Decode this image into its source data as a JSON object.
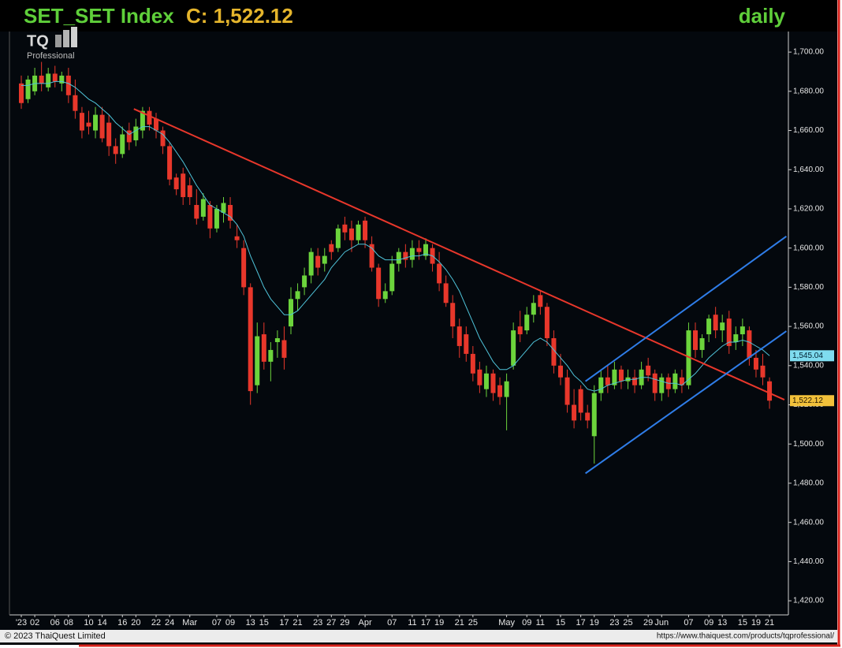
{
  "chart_data": {
    "type": "candlestick",
    "title": "SET_SET Index",
    "price_label": "C: 1,522.12",
    "period": "daily",
    "logo": "TQ",
    "logo_subtext": "Professional",
    "footer_left": "© 2023 ThaiQuest Limited",
    "footer_right": "https://www.thaiquest.com/products/tqprofessional/",
    "up_color": "#6cd43c",
    "down_color": "#e8372b",
    "ylim": [
      1412.8,
      1710.5
    ],
    "yticks": [
      {
        "value": 1420,
        "label": "1,420.00"
      },
      {
        "value": 1440,
        "label": "1,440.00"
      },
      {
        "value": 1460,
        "label": "1,460.00"
      },
      {
        "value": 1480,
        "label": "1,480.00"
      },
      {
        "value": 1500,
        "label": "1,500.00"
      },
      {
        "value": 1520,
        "label": "1,520.00"
      },
      {
        "value": 1540,
        "label": "1,540.00"
      },
      {
        "value": 1560,
        "label": "1,560.00"
      },
      {
        "value": 1580,
        "label": "1,580.00"
      },
      {
        "value": 1600,
        "label": "1,600.00"
      },
      {
        "value": 1620,
        "label": "1,620.00"
      },
      {
        "value": 1640,
        "label": "1,640.00"
      },
      {
        "value": 1660,
        "label": "1,660.00"
      },
      {
        "value": 1680,
        "label": "1,680.00"
      },
      {
        "value": 1700,
        "label": "1,700.00"
      }
    ],
    "categories": [
      "'23",
      null,
      "02",
      null,
      null,
      "06",
      null,
      "08",
      null,
      null,
      "10",
      null,
      "14",
      null,
      null,
      "16",
      null,
      "20",
      null,
      null,
      "22",
      null,
      "24",
      null,
      null,
      "Mar",
      null,
      null,
      null,
      "07",
      null,
      "09",
      null,
      null,
      "13",
      null,
      "15",
      null,
      null,
      "17",
      null,
      "21",
      null,
      null,
      "23",
      null,
      "27",
      null,
      "29",
      null,
      null,
      "Apr",
      null,
      null,
      null,
      "07",
      null,
      null,
      "11",
      null,
      "17",
      null,
      "19",
      null,
      null,
      "21",
      null,
      "25",
      null,
      null,
      null,
      null,
      "May",
      null,
      null,
      "09",
      null,
      "11",
      null,
      null,
      "15",
      null,
      null,
      "17",
      null,
      "19",
      null,
      null,
      "23",
      null,
      "25",
      null,
      null,
      "29",
      null,
      "Jun",
      null,
      null,
      null,
      "07",
      null,
      null,
      "09",
      null,
      "13",
      null,
      null,
      "15",
      null,
      "19",
      null,
      "21"
    ],
    "open": [
      1684,
      1676,
      1680,
      1688,
      1682,
      1689,
      1684,
      1688,
      1678,
      1669,
      1664,
      1660,
      1668,
      1664,
      1652,
      1648,
      1660,
      1655,
      1660,
      1670,
      1666,
      1660,
      1652,
      1636,
      1638,
      1632,
      1622,
      1616,
      1622,
      1610,
      1618,
      1622,
      1606,
      1600,
      1580,
      1530,
      1556,
      1542,
      1552,
      1553,
      1560,
      1574,
      1580,
      1586,
      1596,
      1592,
      1602,
      1600,
      1612,
      1610,
      1604,
      1614,
      1602,
      1590,
      1574,
      1578,
      1592,
      1598,
      1594,
      1600,
      1596,
      1600,
      1592,
      1582,
      1572,
      1560,
      1556,
      1546,
      1538,
      1528,
      1536,
      1530,
      1524,
      1540,
      1560,
      1558,
      1566,
      1576,
      1570,
      1554,
      1540,
      1534,
      1520,
      1528,
      1516,
      1504,
      1526,
      1534,
      1530,
      1538,
      1532,
      1534,
      1530,
      1540,
      1536,
      1526,
      1534,
      1528,
      1534,
      1530,
      1558,
      1548,
      1556,
      1566,
      1558,
      1564,
      1552,
      1556,
      1558,
      1544,
      1540,
      1532
    ],
    "high": [
      1688,
      1688,
      1692,
      1695,
      1692,
      1693,
      1690,
      1692,
      1686,
      1672,
      1670,
      1672,
      1672,
      1668,
      1656,
      1662,
      1664,
      1666,
      1672,
      1672,
      1669,
      1662,
      1654,
      1638,
      1641,
      1636,
      1630,
      1628,
      1624,
      1622,
      1626,
      1626,
      1612,
      1604,
      1582,
      1562,
      1562,
      1552,
      1558,
      1560,
      1580,
      1582,
      1590,
      1600,
      1600,
      1600,
      1604,
      1612,
      1616,
      1614,
      1614,
      1616,
      1606,
      1592,
      1582,
      1596,
      1600,
      1602,
      1604,
      1604,
      1605,
      1602,
      1598,
      1586,
      1576,
      1564,
      1560,
      1550,
      1542,
      1540,
      1538,
      1534,
      1536,
      1562,
      1568,
      1570,
      1576,
      1578,
      1572,
      1558,
      1546,
      1538,
      1528,
      1530,
      1520,
      1530,
      1538,
      1540,
      1542,
      1540,
      1538,
      1538,
      1542,
      1544,
      1538,
      1536,
      1536,
      1538,
      1538,
      1562,
      1562,
      1556,
      1566,
      1570,
      1566,
      1568,
      1560,
      1564,
      1560,
      1548,
      1546,
      1534
    ],
    "low": [
      1671,
      1674,
      1678,
      1680,
      1680,
      1682,
      1680,
      1674,
      1666,
      1656,
      1658,
      1656,
      1654,
      1647,
      1643,
      1646,
      1650,
      1652,
      1656,
      1660,
      1656,
      1648,
      1632,
      1627,
      1622,
      1622,
      1612,
      1614,
      1605,
      1608,
      1613,
      1610,
      1600,
      1576,
      1520,
      1526,
      1538,
      1532,
      1544,
      1538,
      1556,
      1568,
      1576,
      1582,
      1586,
      1588,
      1594,
      1598,
      1604,
      1598,
      1602,
      1600,
      1588,
      1570,
      1572,
      1576,
      1588,
      1590,
      1590,
      1594,
      1594,
      1588,
      1578,
      1570,
      1554,
      1544,
      1542,
      1532,
      1526,
      1524,
      1522,
      1520,
      1507,
      1538,
      1552,
      1556,
      1562,
      1566,
      1550,
      1536,
      1530,
      1516,
      1508,
      1512,
      1508,
      1490,
      1522,
      1526,
      1528,
      1528,
      1528,
      1526,
      1528,
      1532,
      1522,
      1522,
      1524,
      1526,
      1526,
      1528,
      1544,
      1544,
      1552,
      1554,
      1552,
      1546,
      1548,
      1550,
      1540,
      1534,
      1530,
      1518
    ],
    "close": [
      1674,
      1686,
      1688,
      1684,
      1689,
      1685,
      1688,
      1678,
      1670,
      1660,
      1662,
      1668,
      1656,
      1652,
      1648,
      1658,
      1654,
      1662,
      1670,
      1663,
      1660,
      1652,
      1635,
      1630,
      1626,
      1626,
      1615,
      1625,
      1610,
      1620,
      1623,
      1614,
      1604,
      1580,
      1527,
      1555,
      1542,
      1548,
      1554,
      1544,
      1574,
      1578,
      1586,
      1598,
      1590,
      1596,
      1598,
      1610,
      1608,
      1604,
      1612,
      1604,
      1590,
      1574,
      1578,
      1592,
      1598,
      1594,
      1600,
      1598,
      1602,
      1592,
      1582,
      1572,
      1560,
      1550,
      1546,
      1536,
      1530,
      1536,
      1526,
      1524,
      1532,
      1558,
      1556,
      1566,
      1572,
      1570,
      1554,
      1540,
      1534,
      1520,
      1512,
      1516,
      1512,
      1526,
      1534,
      1530,
      1538,
      1532,
      1534,
      1530,
      1538,
      1535,
      1526,
      1534,
      1528,
      1536,
      1530,
      1558,
      1548,
      1554,
      1564,
      1558,
      1562,
      1550,
      1556,
      1560,
      1544,
      1538,
      1534,
      1522.12
    ],
    "close_label": "1,522.12",
    "ma": {
      "color": "#4fc3d9",
      "values": [
        1683,
        1683,
        1684,
        1684,
        1684,
        1685,
        1685,
        1684,
        1682,
        1679,
        1676,
        1674,
        1671,
        1668,
        1664,
        1661,
        1658,
        1660,
        1662,
        1662,
        1660,
        1658,
        1654,
        1649,
        1644,
        1638,
        1632,
        1627,
        1622,
        1620,
        1618,
        1616,
        1612,
        1606,
        1596,
        1588,
        1580,
        1574,
        1570,
        1566,
        1566,
        1568,
        1572,
        1576,
        1580,
        1584,
        1590,
        1594,
        1598,
        1600,
        1602,
        1602,
        1600,
        1596,
        1594,
        1594,
        1594,
        1595,
        1596,
        1596,
        1597,
        1596,
        1593,
        1589,
        1584,
        1578,
        1570,
        1562,
        1554,
        1548,
        1542,
        1538,
        1538,
        1540,
        1544,
        1548,
        1552,
        1554,
        1552,
        1548,
        1544,
        1540,
        1535,
        1532,
        1528,
        1527,
        1528,
        1530,
        1531,
        1532,
        1533,
        1533,
        1534,
        1534,
        1533,
        1532,
        1531,
        1531,
        1530,
        1533,
        1536,
        1540,
        1544,
        1547,
        1550,
        1552,
        1552,
        1553,
        1552,
        1550,
        1548,
        1545.04
      ],
      "last_label": "1,545.04"
    },
    "trendlines": [
      {
        "color": "#e8372b",
        "x": [
          16.7,
          113.2
        ],
        "y": [
          1671,
          1522.6
        ]
      },
      {
        "color": "#2f7de8",
        "x": [
          83.7,
          113.5
        ],
        "y": [
          1532,
          1606
        ]
      },
      {
        "color": "#2f7de8",
        "x": [
          83.7,
          113.5
        ],
        "y": [
          1485,
          1557.6
        ]
      }
    ]
  }
}
